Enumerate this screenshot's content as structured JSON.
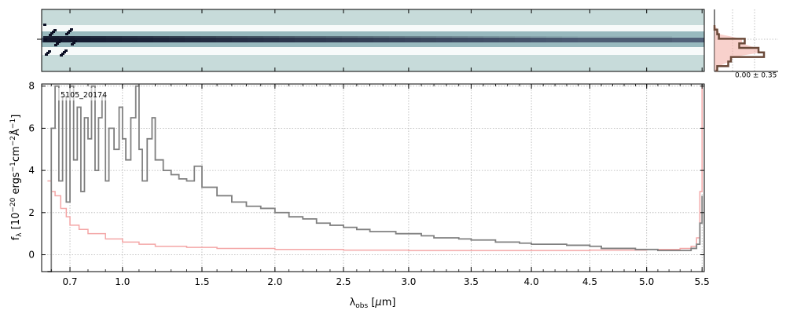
{
  "chart_data": [
    {
      "type": "heatmap",
      "panel": "2D spectrum",
      "colormap": [
        "#c7dbda",
        "#ffffff",
        "#8fb3b8",
        "#3c4a66",
        "#0b0f24"
      ],
      "background_color": "#c7dbda"
    },
    {
      "type": "line",
      "panel": "1D spectrum",
      "annotation": "5105_20174",
      "xlabel": "λ_obs [μm]",
      "ylabel": "f_λ [10^-20 ergs^-1cm^-2Å^-1]",
      "xlim": [
        0.55,
        5.52
      ],
      "ylim": [
        -0.8,
        8.1
      ],
      "x_tick_values": [
        0.7,
        1.0,
        1.5,
        2.0,
        2.5,
        3.0,
        3.5,
        4.0,
        4.5,
        5.0,
        5.5
      ],
      "x_tick_labels": [
        "0.7",
        "1.0",
        "1.5",
        "2.0",
        "2.5",
        "3.0",
        "3.5",
        "4.0",
        "4.5",
        "5.0",
        "5.5"
      ],
      "y_tick_values": [
        0,
        2,
        4,
        6,
        8
      ],
      "y_tick_labels": [
        "0",
        "2",
        "4",
        "6",
        "8"
      ],
      "grid": true,
      "series": [
        {
          "role": "flux",
          "color": "#808080",
          "x": [
            0.58,
            0.6,
            0.62,
            0.64,
            0.66,
            0.68,
            0.7,
            0.72,
            0.74,
            0.76,
            0.78,
            0.8,
            0.82,
            0.84,
            0.86,
            0.88,
            0.9,
            0.92,
            0.95,
            0.98,
            1.0,
            1.02,
            1.05,
            1.08,
            1.1,
            1.12,
            1.15,
            1.18,
            1.2,
            1.25,
            1.3,
            1.35,
            1.4,
            1.45,
            1.5,
            1.6,
            1.7,
            1.8,
            1.9,
            2.0,
            2.1,
            2.2,
            2.3,
            2.4,
            2.5,
            2.6,
            2.7,
            2.8,
            2.9,
            3.0,
            3.1,
            3.2,
            3.3,
            3.4,
            3.5,
            3.6,
            3.7,
            3.8,
            3.9,
            4.0,
            4.1,
            4.2,
            4.3,
            4.4,
            4.5,
            4.6,
            4.7,
            4.8,
            4.9,
            5.0,
            5.1,
            5.2,
            5.3,
            5.4,
            5.45,
            5.48,
            5.5
          ],
          "y": [
            -0.9,
            6.0,
            8.0,
            3.5,
            7.5,
            2.5,
            8.0,
            4.5,
            7.0,
            3.0,
            6.5,
            5.5,
            8.0,
            4.0,
            6.5,
            7.5,
            3.5,
            6.0,
            5.0,
            7.0,
            5.5,
            4.5,
            6.5,
            8.0,
            5.0,
            3.5,
            5.5,
            6.5,
            4.5,
            4.0,
            3.8,
            3.6,
            3.5,
            4.2,
            3.2,
            2.8,
            2.5,
            2.3,
            2.2,
            2.0,
            1.8,
            1.7,
            1.5,
            1.4,
            1.3,
            1.2,
            1.1,
            1.1,
            1.0,
            1.0,
            0.9,
            0.8,
            0.8,
            0.75,
            0.7,
            0.7,
            0.6,
            0.6,
            0.55,
            0.5,
            0.5,
            0.5,
            0.45,
            0.45,
            0.4,
            0.3,
            0.3,
            0.3,
            0.25,
            0.25,
            0.2,
            0.2,
            0.2,
            0.3,
            0.5,
            1.5,
            2.8
          ]
        },
        {
          "role": "error",
          "color": "#f4a6a6",
          "x": [
            0.58,
            0.6,
            0.62,
            0.65,
            0.68,
            0.7,
            0.75,
            0.8,
            0.9,
            1.0,
            1.1,
            1.2,
            1.4,
            1.6,
            2.0,
            2.5,
            3.0,
            3.5,
            4.0,
            4.5,
            5.0,
            5.3,
            5.4,
            5.45,
            5.48,
            5.5
          ],
          "y": [
            3.5,
            3.0,
            2.8,
            2.2,
            1.8,
            1.4,
            1.2,
            1.0,
            0.75,
            0.6,
            0.5,
            0.4,
            0.35,
            0.3,
            0.25,
            0.22,
            0.2,
            0.2,
            0.2,
            0.22,
            0.25,
            0.3,
            0.4,
            0.8,
            3.0,
            8.0
          ]
        }
      ]
    },
    {
      "type": "line",
      "panel": "spatial profile",
      "annotation": "0.00 ± 0.35",
      "series": [
        {
          "role": "profile",
          "color": "#6b4a3a",
          "values": [
            0.0,
            0.05,
            0.08,
            0.55,
            0.45,
            0.8,
            0.9,
            0.3,
            0.25,
            0.05,
            0.02
          ]
        },
        {
          "role": "model",
          "color": "#f4b3aa",
          "values": [
            0.0,
            0.06,
            0.1,
            0.5,
            0.5,
            0.75,
            0.85,
            0.35,
            0.28,
            0.08,
            0.02
          ]
        }
      ]
    }
  ]
}
